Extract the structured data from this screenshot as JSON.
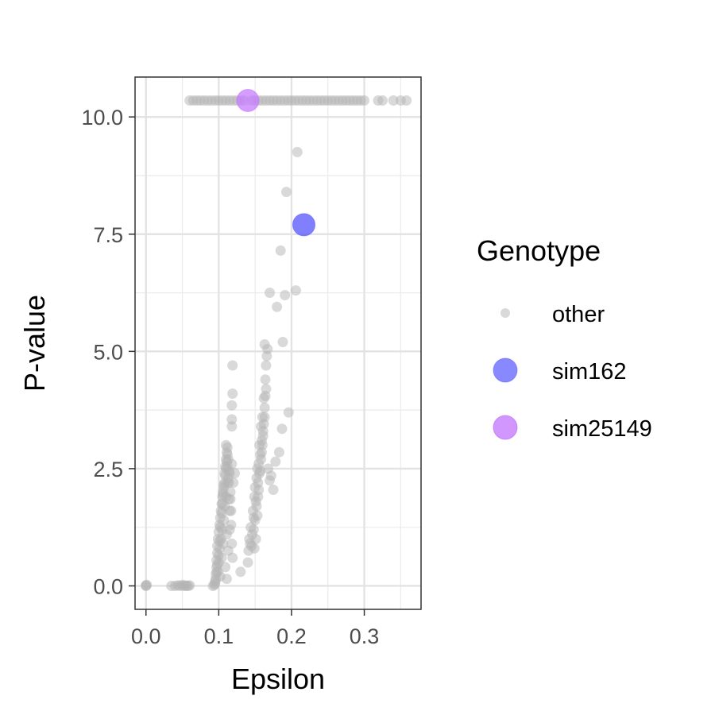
{
  "chart_data": {
    "type": "scatter",
    "xlabel": "Epsilon",
    "ylabel": "P-value",
    "xlim": [
      -0.015,
      0.378
    ],
    "ylim": [
      -0.5,
      10.85
    ],
    "x_ticks": [
      0.0,
      0.1,
      0.2,
      0.3
    ],
    "x_tick_labels": [
      "0.0",
      "0.1",
      "0.2",
      "0.3"
    ],
    "y_ticks": [
      0.0,
      2.5,
      5.0,
      7.5,
      10.0
    ],
    "y_tick_labels": [
      "0.0",
      "2.5",
      "5.0",
      "7.5",
      "10.0"
    ],
    "grid": true,
    "legend": {
      "title": "Genotype",
      "position": "right",
      "entries": [
        {
          "label": "other",
          "color": "#b3b3b3"
        },
        {
          "label": "sim162",
          "color": "#5555ff"
        },
        {
          "label": "sim25149",
          "color": "#c77cff"
        }
      ]
    },
    "series": [
      {
        "name": "other",
        "color": "#b3b3b3",
        "points": [
          [
            0.0,
            0.0
          ],
          [
            0.0,
            0.01
          ],
          [
            0.001,
            0.02
          ],
          [
            0.035,
            0.0
          ],
          [
            0.04,
            0.0
          ],
          [
            0.044,
            0.01
          ],
          [
            0.047,
            0.0
          ],
          [
            0.05,
            0.02
          ],
          [
            0.052,
            0.0
          ],
          [
            0.054,
            0.01
          ],
          [
            0.056,
            0.0
          ],
          [
            0.058,
            0.0
          ],
          [
            0.06,
            0.01
          ],
          [
            0.092,
            0.0
          ],
          [
            0.094,
            0.02
          ],
          [
            0.095,
            0.1
          ],
          [
            0.096,
            0.25
          ],
          [
            0.097,
            0.4
          ],
          [
            0.097,
            0.55
          ],
          [
            0.098,
            0.7
          ],
          [
            0.098,
            0.85
          ],
          [
            0.099,
            1.0
          ],
          [
            0.099,
            0.3
          ],
          [
            0.1,
            1.15
          ],
          [
            0.1,
            0.5
          ],
          [
            0.101,
            1.3
          ],
          [
            0.101,
            0.8
          ],
          [
            0.102,
            1.45
          ],
          [
            0.102,
            0.2
          ],
          [
            0.103,
            1.6
          ],
          [
            0.103,
            1.0
          ],
          [
            0.104,
            1.75
          ],
          [
            0.104,
            0.6
          ],
          [
            0.105,
            1.9
          ],
          [
            0.105,
            1.2
          ],
          [
            0.106,
            2.0
          ],
          [
            0.106,
            0.9
          ],
          [
            0.107,
            2.1
          ],
          [
            0.107,
            1.4
          ],
          [
            0.108,
            2.2
          ],
          [
            0.108,
            1.7
          ],
          [
            0.109,
            2.35
          ],
          [
            0.109,
            0.4
          ],
          [
            0.11,
            2.5
          ],
          [
            0.11,
            1.9
          ],
          [
            0.111,
            2.65
          ],
          [
            0.111,
            1.1
          ],
          [
            0.112,
            2.8
          ],
          [
            0.112,
            2.2
          ],
          [
            0.113,
            2.3
          ],
          [
            0.114,
            2.45
          ],
          [
            0.115,
            1.6
          ],
          [
            0.116,
            2.0
          ],
          [
            0.117,
            1.3
          ],
          [
            0.118,
            0.9
          ],
          [
            0.119,
            0.6
          ],
          [
            0.11,
            3.0
          ],
          [
            0.112,
            2.95
          ],
          [
            0.111,
            0.15
          ],
          [
            0.113,
            0.75
          ],
          [
            0.114,
            1.85
          ],
          [
            0.118,
            2.6
          ],
          [
            0.12,
            2.2
          ],
          [
            0.122,
            2.4
          ],
          [
            0.118,
            3.4
          ],
          [
            0.118,
            3.55
          ],
          [
            0.118,
            3.85
          ],
          [
            0.119,
            4.1
          ],
          [
            0.119,
            4.7
          ],
          [
            0.13,
            0.3
          ],
          [
            0.14,
            0.5
          ],
          [
            0.141,
            0.75
          ],
          [
            0.142,
            1.0
          ],
          [
            0.143,
            0.9
          ],
          [
            0.144,
            1.25
          ],
          [
            0.145,
            0.85
          ],
          [
            0.146,
            1.1
          ],
          [
            0.147,
            1.6
          ],
          [
            0.148,
            1.45
          ],
          [
            0.149,
            1.9
          ],
          [
            0.15,
            2.1
          ],
          [
            0.151,
            1.8
          ],
          [
            0.152,
            2.3
          ],
          [
            0.153,
            2.5
          ],
          [
            0.154,
            2.2
          ],
          [
            0.155,
            2.6
          ],
          [
            0.156,
            3.0
          ],
          [
            0.157,
            2.8
          ],
          [
            0.158,
            3.4
          ],
          [
            0.159,
            3.1
          ],
          [
            0.16,
            3.6
          ],
          [
            0.161,
            3.3
          ],
          [
            0.162,
            4.0
          ],
          [
            0.163,
            3.8
          ],
          [
            0.164,
            4.4
          ],
          [
            0.165,
            4.7
          ],
          [
            0.166,
            4.9
          ],
          [
            0.167,
            5.05
          ],
          [
            0.148,
            1.2
          ],
          [
            0.149,
            0.8
          ],
          [
            0.15,
            1.4
          ],
          [
            0.151,
            1.0
          ],
          [
            0.152,
            1.7
          ],
          [
            0.153,
            1.5
          ],
          [
            0.154,
            1.9
          ],
          [
            0.155,
            2.05
          ],
          [
            0.156,
            2.4
          ],
          [
            0.157,
            2.45
          ],
          [
            0.158,
            2.7
          ],
          [
            0.159,
            2.85
          ],
          [
            0.16,
            3.0
          ],
          [
            0.161,
            3.2
          ],
          [
            0.162,
            3.45
          ],
          [
            0.163,
            3.6
          ],
          [
            0.164,
            4.05
          ],
          [
            0.165,
            4.2
          ],
          [
            0.168,
            2.5
          ],
          [
            0.17,
            2.25
          ],
          [
            0.172,
            2.35
          ],
          [
            0.175,
            2.05
          ],
          [
            0.178,
            2.65
          ],
          [
            0.183,
            2.85
          ],
          [
            0.187,
            3.35
          ],
          [
            0.163,
            5.15
          ],
          [
            0.17,
            6.25
          ],
          [
            0.18,
            5.95
          ],
          [
            0.185,
            7.15
          ],
          [
            0.188,
            5.2
          ],
          [
            0.191,
            6.2
          ],
          [
            0.196,
            3.7
          ],
          [
            0.193,
            8.4
          ],
          [
            0.206,
            6.3
          ],
          [
            0.208,
            9.25
          ],
          [
            0.095,
            0.05
          ],
          [
            0.096,
            0.15
          ],
          [
            0.097,
            0.3
          ],
          [
            0.098,
            0.45
          ],
          [
            0.1,
            0.65
          ],
          [
            0.101,
            0.95
          ],
          [
            0.102,
            1.25
          ],
          [
            0.104,
            1.55
          ],
          [
            0.105,
            1.75
          ],
          [
            0.106,
            1.95
          ],
          [
            0.107,
            2.15
          ],
          [
            0.108,
            2.4
          ],
          [
            0.109,
            2.55
          ],
          [
            0.11,
            2.7
          ],
          [
            0.111,
            2.85
          ],
          [
            0.112,
            2.55
          ],
          [
            0.113,
            2.7
          ],
          [
            0.114,
            2.2
          ],
          [
            0.115,
            2.4
          ],
          [
            0.116,
            1.85
          ],
          [
            0.117,
            1.6
          ],
          [
            0.115,
            1.2
          ],
          [
            0.06,
            10.35
          ],
          [
            0.065,
            10.35
          ],
          [
            0.07,
            10.35
          ],
          [
            0.075,
            10.35
          ],
          [
            0.08,
            10.35
          ],
          [
            0.085,
            10.35
          ],
          [
            0.09,
            10.35
          ],
          [
            0.095,
            10.35
          ],
          [
            0.1,
            10.35
          ],
          [
            0.105,
            10.35
          ],
          [
            0.11,
            10.35
          ],
          [
            0.115,
            10.35
          ],
          [
            0.12,
            10.35
          ],
          [
            0.125,
            10.35
          ],
          [
            0.13,
            10.35
          ],
          [
            0.135,
            10.35
          ],
          [
            0.145,
            10.35
          ],
          [
            0.15,
            10.35
          ],
          [
            0.155,
            10.35
          ],
          [
            0.16,
            10.35
          ],
          [
            0.165,
            10.35
          ],
          [
            0.17,
            10.35
          ],
          [
            0.175,
            10.35
          ],
          [
            0.18,
            10.35
          ],
          [
            0.185,
            10.35
          ],
          [
            0.19,
            10.35
          ],
          [
            0.195,
            10.35
          ],
          [
            0.2,
            10.35
          ],
          [
            0.205,
            10.35
          ],
          [
            0.21,
            10.35
          ],
          [
            0.215,
            10.35
          ],
          [
            0.22,
            10.35
          ],
          [
            0.225,
            10.35
          ],
          [
            0.23,
            10.35
          ],
          [
            0.235,
            10.35
          ],
          [
            0.24,
            10.35
          ],
          [
            0.245,
            10.35
          ],
          [
            0.25,
            10.35
          ],
          [
            0.255,
            10.35
          ],
          [
            0.26,
            10.35
          ],
          [
            0.265,
            10.35
          ],
          [
            0.27,
            10.35
          ],
          [
            0.275,
            10.35
          ],
          [
            0.28,
            10.35
          ],
          [
            0.285,
            10.35
          ],
          [
            0.29,
            10.35
          ],
          [
            0.295,
            10.35
          ],
          [
            0.3,
            10.35
          ],
          [
            0.319,
            10.35
          ],
          [
            0.325,
            10.35
          ],
          [
            0.34,
            10.35
          ],
          [
            0.35,
            10.35
          ],
          [
            0.358,
            10.35
          ]
        ]
      },
      {
        "name": "sim162",
        "color": "#5555ff",
        "points": [
          [
            0.217,
            7.7
          ]
        ]
      },
      {
        "name": "sim25149",
        "color": "#c77cff",
        "points": [
          [
            0.14,
            10.35
          ]
        ]
      }
    ]
  }
}
